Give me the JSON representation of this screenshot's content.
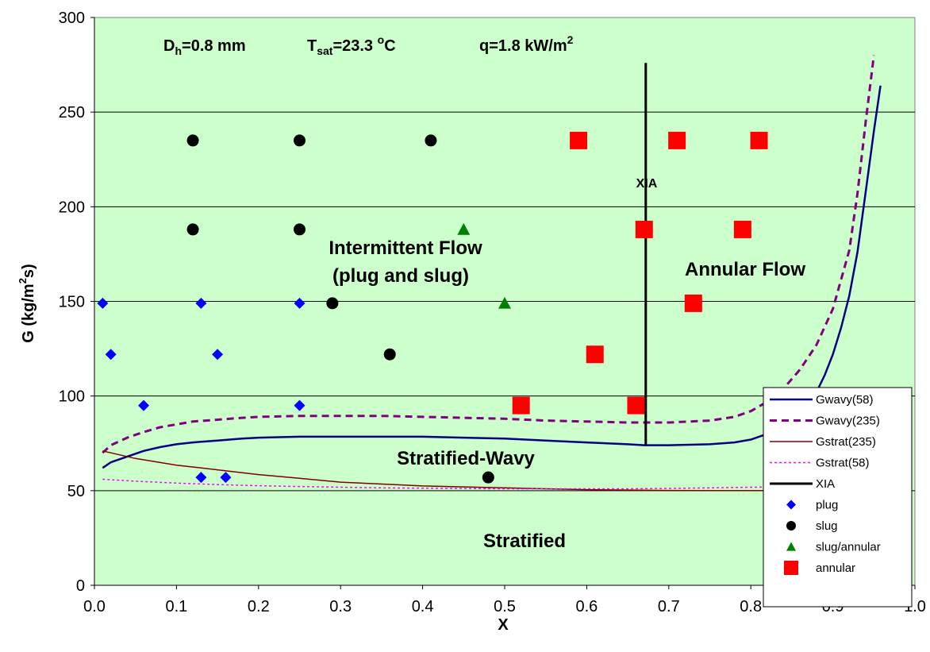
{
  "chart_data": {
    "type": "scatter",
    "xlabel": "X",
    "ylabel": "G (kg/m²s)",
    "ylabel_parts": {
      "main": "G (kg/m",
      "sup": "2",
      "tail": "s)"
    },
    "xlim": [
      0.0,
      1.0
    ],
    "ylim": [
      0,
      300
    ],
    "xticks": [
      "0.0",
      "0.1",
      "0.2",
      "0.3",
      "0.4",
      "0.5",
      "0.6",
      "0.7",
      "0.8",
      "0.9",
      "1.0"
    ],
    "yticks": [
      "0",
      "50",
      "100",
      "150",
      "200",
      "250",
      "300"
    ],
    "grid": "horizontal",
    "background": "#ccffcc",
    "legend_position": "bottom-right",
    "conditions": {
      "dh": {
        "main": "D",
        "sub": "h",
        "tail": "=0.8 mm"
      },
      "tsat": {
        "main": "T",
        "sub": "sat",
        "tail": "=23.3 ",
        "sup": "o",
        "tail2": "C"
      },
      "q": {
        "main": "q=1.8 kW/m",
        "sup": "2"
      }
    },
    "regions": {
      "intermittent_line1": "Intermittent Flow",
      "intermittent_line2": "(plug and slug)",
      "annular": "Annular Flow",
      "stratified_wavy": "Stratified-Wavy",
      "stratified": "Stratified"
    },
    "xia_label": "XIA",
    "series": [
      {
        "name": "Gwavy(58)",
        "kind": "line",
        "color": "#000080",
        "dash": "",
        "width": 2.5,
        "x": [
          0.01,
          0.02,
          0.04,
          0.06,
          0.08,
          0.1,
          0.12,
          0.15,
          0.18,
          0.2,
          0.25,
          0.3,
          0.35,
          0.4,
          0.45,
          0.5,
          0.55,
          0.6,
          0.65,
          0.67,
          0.7,
          0.75,
          0.78,
          0.8,
          0.82,
          0.84,
          0.86,
          0.88,
          0.89,
          0.9,
          0.91,
          0.92,
          0.93,
          0.94,
          0.95,
          0.958
        ],
        "y": [
          62,
          65,
          68,
          71,
          73,
          74.5,
          75.5,
          76.5,
          77.5,
          78,
          78.5,
          78.5,
          78.5,
          78.5,
          78,
          77.5,
          76.5,
          75.5,
          74.5,
          74,
          74,
          74.5,
          75.5,
          77,
          80,
          85,
          92,
          102,
          111,
          122,
          136,
          153,
          176,
          208,
          240,
          264
        ]
      },
      {
        "name": "Gwavy(235)",
        "kind": "line",
        "color": "#800080",
        "dash": "9,6",
        "width": 3,
        "x": [
          0.01,
          0.02,
          0.04,
          0.06,
          0.08,
          0.1,
          0.12,
          0.15,
          0.18,
          0.2,
          0.25,
          0.3,
          0.35,
          0.4,
          0.45,
          0.5,
          0.55,
          0.6,
          0.65,
          0.7,
          0.75,
          0.78,
          0.8,
          0.82,
          0.84,
          0.86,
          0.88,
          0.9,
          0.92,
          0.93,
          0.94,
          0.95
        ],
        "y": [
          70,
          74,
          78,
          81,
          83.5,
          85,
          86.5,
          87.5,
          88.5,
          89,
          89.5,
          89.5,
          89.5,
          89,
          88.5,
          88,
          87,
          86.5,
          86,
          86,
          87,
          89,
          92,
          97,
          104,
          114,
          127,
          146,
          177,
          207,
          245,
          280
        ]
      },
      {
        "name": "Gstrat(235)",
        "kind": "line",
        "color": "#800000",
        "dash": "",
        "width": 1.5,
        "x": [
          0.01,
          0.05,
          0.1,
          0.15,
          0.2,
          0.25,
          0.3,
          0.35,
          0.4,
          0.45,
          0.5,
          0.55,
          0.6,
          0.65,
          0.7,
          0.8,
          0.9,
          0.95
        ],
        "y": [
          71,
          67,
          63.5,
          61,
          58.5,
          56.5,
          54.5,
          53.5,
          52.5,
          52,
          51.5,
          51,
          50.5,
          50.3,
          50.1,
          50,
          50,
          50
        ]
      },
      {
        "name": "Gstrat(58)",
        "kind": "line",
        "color": "#ff00ff",
        "dash": "3,3",
        "width": 1.5,
        "x": [
          0.01,
          0.05,
          0.1,
          0.15,
          0.2,
          0.25,
          0.3,
          0.35,
          0.4,
          0.45,
          0.5,
          0.55,
          0.6,
          0.65,
          0.7,
          0.75,
          0.8,
          0.85,
          0.9,
          0.95
        ],
        "y": [
          56,
          55,
          54,
          53.2,
          52.6,
          52.2,
          51.8,
          51.5,
          51.3,
          51.1,
          51,
          51,
          51,
          51,
          51.2,
          51.5,
          51.8,
          52,
          52.2,
          52.5
        ]
      },
      {
        "name": "XIA",
        "kind": "line",
        "color": "#000000",
        "dash": "",
        "width": 3,
        "x": [
          0.672,
          0.672
        ],
        "y": [
          74,
          276
        ]
      },
      {
        "name": "plug",
        "kind": "marker",
        "marker": "diamond",
        "color": "#0000ff",
        "x": [
          0.01,
          0.13,
          0.25,
          0.02,
          0.15,
          0.06,
          0.25,
          0.13,
          0.16
        ],
        "y": [
          149,
          149,
          149,
          122,
          122,
          95,
          95,
          57,
          57
        ]
      },
      {
        "name": "slug",
        "kind": "marker",
        "marker": "circle",
        "color": "#000000",
        "x": [
          0.12,
          0.25,
          0.41,
          0.12,
          0.25,
          0.29,
          0.36,
          0.48
        ],
        "y": [
          235,
          235,
          235,
          188,
          188,
          149,
          122,
          57
        ]
      },
      {
        "name": "slug/annular",
        "kind": "marker",
        "marker": "triangle",
        "color": "#008000",
        "x": [
          0.45,
          0.5
        ],
        "y": [
          188,
          149
        ]
      },
      {
        "name": "annular",
        "kind": "marker",
        "marker": "square",
        "color": "#ff0000",
        "x": [
          0.59,
          0.71,
          0.81,
          0.67,
          0.79,
          0.73,
          0.61,
          0.52,
          0.66
        ],
        "y": [
          235,
          235,
          235,
          188,
          188,
          149,
          122,
          95,
          95
        ]
      }
    ]
  }
}
